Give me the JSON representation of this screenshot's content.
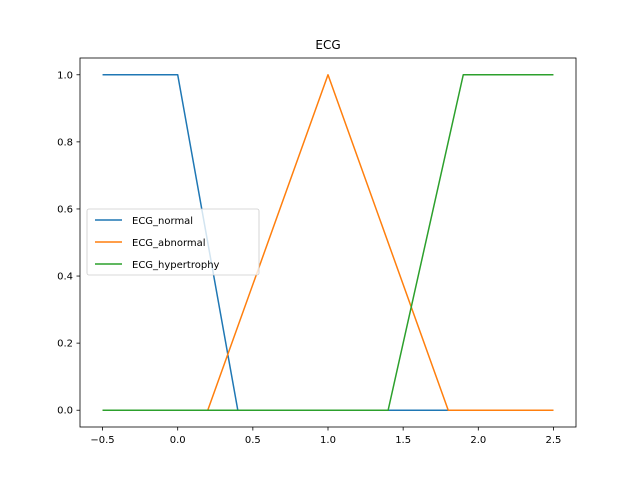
{
  "chart_data": {
    "type": "line",
    "title": "ECG",
    "xlabel": "",
    "ylabel": "",
    "xlim": [
      -0.65,
      2.65
    ],
    "ylim": [
      -0.05,
      1.05
    ],
    "xticks": [
      -0.5,
      0.0,
      0.5,
      1.0,
      1.5,
      2.0,
      2.5
    ],
    "xtick_labels": [
      "−0.5",
      "0.0",
      "0.5",
      "1.0",
      "1.5",
      "2.0",
      "2.5"
    ],
    "yticks": [
      0.0,
      0.2,
      0.4,
      0.6,
      0.8,
      1.0
    ],
    "ytick_labels": [
      "0.0",
      "0.2",
      "0.4",
      "0.6",
      "0.8",
      "1.0"
    ],
    "grid": false,
    "legend_position": "center-left",
    "series": [
      {
        "name": "ECG_normal",
        "color": "#1f77b4",
        "x": [
          -0.5,
          0.0,
          0.4,
          2.5
        ],
        "y": [
          1.0,
          1.0,
          0.0,
          0.0
        ]
      },
      {
        "name": "ECG_abnormal",
        "color": "#ff7f0e",
        "x": [
          -0.5,
          0.2,
          1.0,
          1.8,
          2.5
        ],
        "y": [
          0.0,
          0.0,
          1.0,
          0.0,
          0.0
        ]
      },
      {
        "name": "ECG_hypertrophy",
        "color": "#2ca02c",
        "x": [
          -0.5,
          1.4,
          1.9,
          2.5
        ],
        "y": [
          0.0,
          0.0,
          1.0,
          1.0
        ]
      }
    ]
  }
}
